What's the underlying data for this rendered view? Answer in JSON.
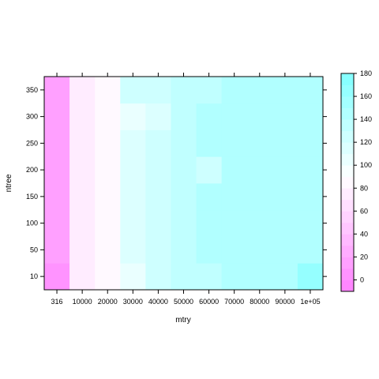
{
  "chart_data": {
    "type": "heatmap",
    "title": "",
    "xlabel": "mtry",
    "ylabel": "ntree",
    "x_categories": [
      "316",
      "10000",
      "20000",
      "30000",
      "40000",
      "50000",
      "60000",
      "70000",
      "80000",
      "90000",
      "1e+05"
    ],
    "y_categories": [
      "10",
      "50",
      "100",
      "150",
      "200",
      "250",
      "300",
      "350"
    ],
    "values": [
      [
        5,
        72,
        85,
        105,
        128,
        135,
        138,
        140,
        140,
        140,
        162
      ],
      [
        12,
        72,
        85,
        110,
        122,
        135,
        140,
        140,
        140,
        145,
        145
      ],
      [
        12,
        72,
        85,
        112,
        122,
        135,
        140,
        140,
        140,
        145,
        145
      ],
      [
        12,
        72,
        85,
        112,
        122,
        135,
        140,
        140,
        140,
        145,
        145
      ],
      [
        12,
        72,
        85,
        115,
        125,
        135,
        128,
        140,
        140,
        140,
        140
      ],
      [
        12,
        72,
        85,
        110,
        125,
        135,
        140,
        140,
        140,
        145,
        145
      ],
      [
        12,
        72,
        85,
        108,
        118,
        135,
        140,
        140,
        140,
        140,
        140
      ],
      [
        12,
        72,
        85,
        125,
        128,
        132,
        132,
        140,
        140,
        140,
        148
      ]
    ],
    "colorkey": {
      "ticks": [
        "0",
        "20",
        "40",
        "60",
        "80",
        "100",
        "120",
        "140",
        "160",
        "180"
      ],
      "range": [
        -10,
        180
      ],
      "breaks": 19,
      "low_color": "#ff80ff",
      "mid_color": "#ffffff",
      "high_color": "#80ffff"
    },
    "grid": false,
    "legend": "right"
  }
}
